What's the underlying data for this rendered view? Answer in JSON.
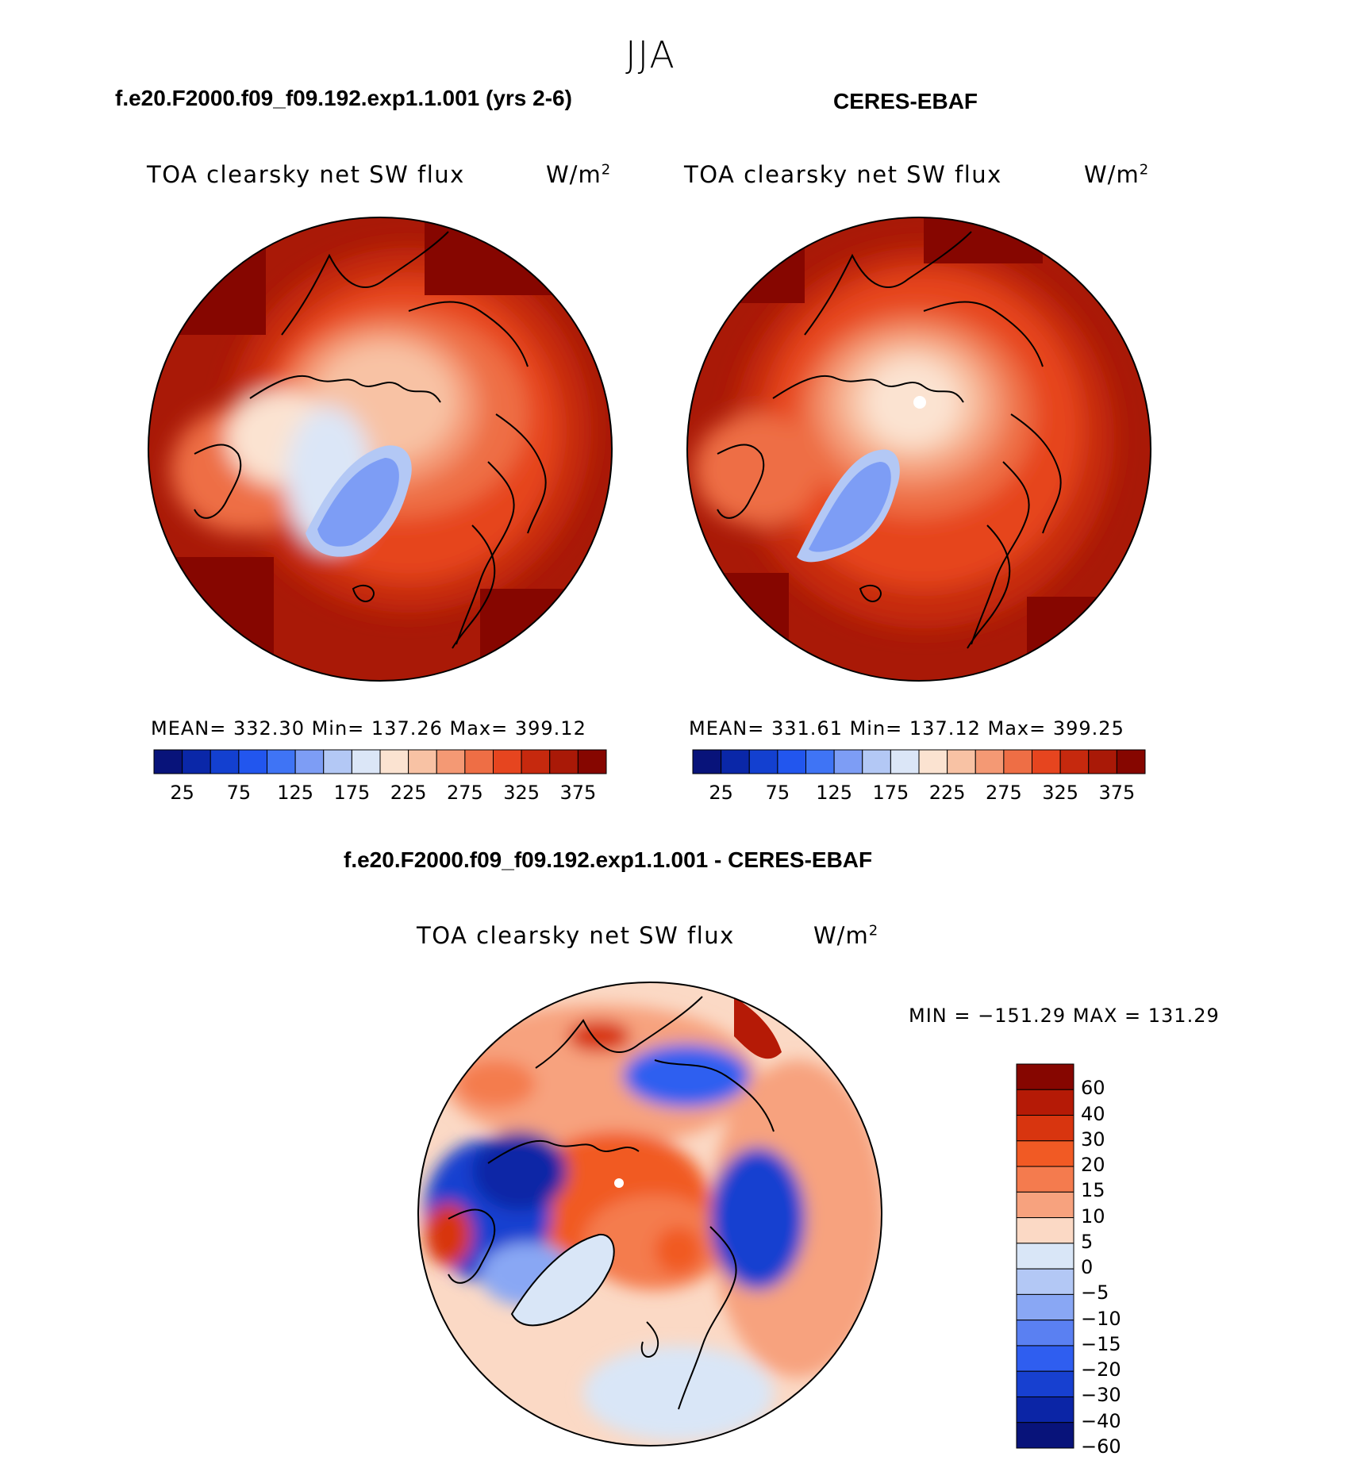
{
  "figure": {
    "season": "JJA",
    "test_case": "f.e20.F2000.f09_f09.192.exp1.1.001 (yrs 2-6)",
    "obs_case": "CERES-EBAF",
    "diff_title": "f.e20.F2000.f09_f09.192.exp1.1.001 - CERES-EBAF"
  },
  "panels": {
    "left": {
      "variable": "TOA clearsky net SW flux",
      "units_base": "W/m",
      "units_exp": "2",
      "stats": "MEAN= 332.30   Min= 137.26   Max= 399.12"
    },
    "right": {
      "variable": "TOA clearsky net SW flux",
      "units_base": "W/m",
      "units_exp": "2",
      "stats": "MEAN= 331.61   Min= 137.12   Max= 399.25"
    },
    "diff": {
      "variable": "TOA clearsky net SW flux",
      "units_base": "W/m",
      "units_exp": "2",
      "stats": "MIN = −151.29 MAX = 131.29"
    }
  },
  "colorbar_abs": {
    "colors": [
      "#08137a",
      "#0a27a8",
      "#1340d0",
      "#2256ee",
      "#3f74f5",
      "#7d9df5",
      "#b3c8f5",
      "#dbe6f7",
      "#fbe3d1",
      "#f8c2a4",
      "#f49974",
      "#ee6e45",
      "#e6451f",
      "#c6290e",
      "#a91907",
      "#860600"
    ],
    "tick_labels": [
      "25",
      "75",
      "125",
      "175",
      "225",
      "275",
      "325",
      "375"
    ]
  },
  "colorbar_diff": {
    "colors": [
      "#860600",
      "#b51a06",
      "#d8350f",
      "#f15a24",
      "#f47b4e",
      "#f7a27e",
      "#fbd9c5",
      "#d9e6f7",
      "#b3c8f5",
      "#89a7f4",
      "#5a80f2",
      "#2f5ef0",
      "#1740d0",
      "#0b25a6",
      "#08137a"
    ],
    "tick_labels": [
      "60",
      "40",
      "30",
      "20",
      "15",
      "10",
      "5",
      "0",
      "−5",
      "−10",
      "−15",
      "−20",
      "−30",
      "−40",
      "−60"
    ]
  }
}
